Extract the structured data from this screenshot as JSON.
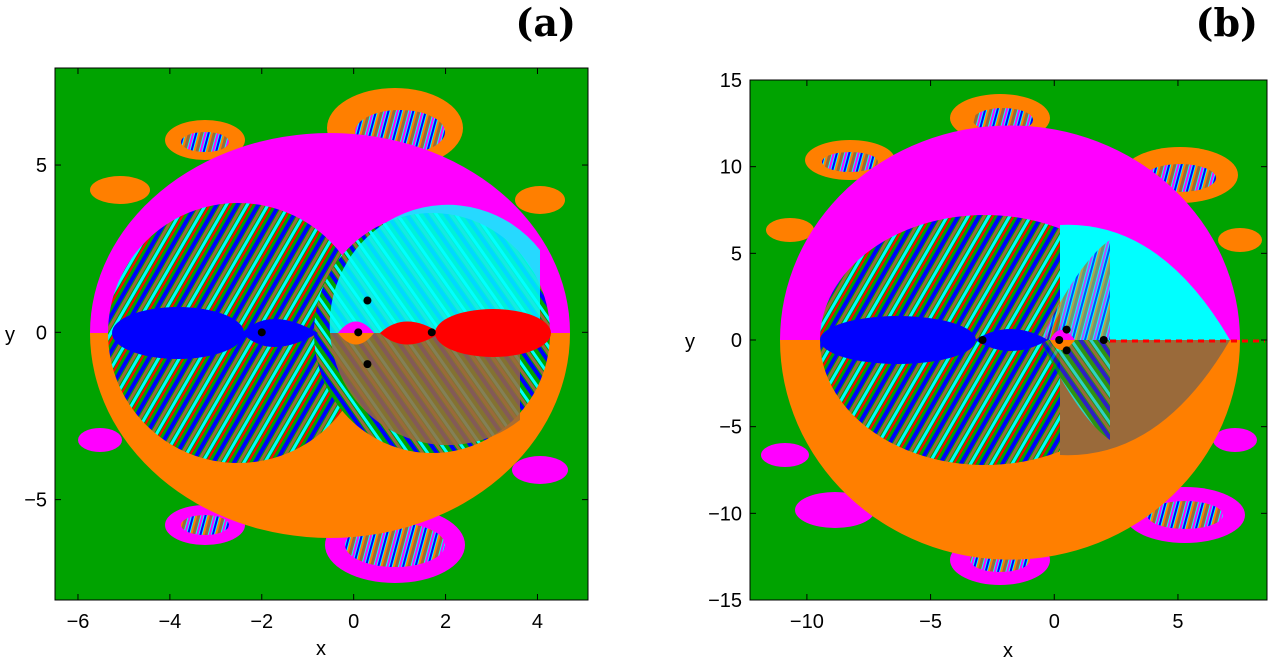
{
  "colors": {
    "green": "#00a300",
    "magenta": "#ff00ff",
    "cyan": "#00ffff",
    "blue": "#0000ff",
    "red": "#ff0000",
    "orange": "#ff7f00",
    "brown": "#9a6a3a",
    "point": "#000000"
  },
  "chart_data": [
    {
      "type": "heatmap",
      "panel_label": "(a)",
      "xlabel": "x",
      "ylabel": "y",
      "xlim": [
        -6.5,
        5.1
      ],
      "ylim": [
        -8.0,
        7.9
      ],
      "xticks": [
        -6,
        -4,
        -2,
        0,
        2,
        4
      ],
      "xtick_labels": [
        "−6",
        "−4",
        "−2",
        "0",
        "2",
        "4"
      ],
      "yticks": [
        -5,
        0,
        5
      ],
      "ytick_labels": [
        "−5",
        "0",
        "5"
      ],
      "points": [
        {
          "x": -2.0,
          "y": 0.0
        },
        {
          "x": 0.1,
          "y": 0.0
        },
        {
          "x": 1.7,
          "y": 0.0
        },
        {
          "x": 0.3,
          "y": 0.95
        },
        {
          "x": 0.3,
          "y": -0.95
        }
      ]
    },
    {
      "type": "heatmap",
      "panel_label": "(b)",
      "xlabel": "x",
      "ylabel": "y",
      "xlim": [
        -12.3,
        8.6
      ],
      "ylim": [
        -15.0,
        15.0
      ],
      "xticks": [
        -10,
        -5,
        0,
        5
      ],
      "xtick_labels": [
        "−10",
        "−5",
        "0",
        "5"
      ],
      "yticks": [
        -15,
        -10,
        -5,
        0,
        5,
        10,
        15
      ],
      "ytick_labels": [
        "−15",
        "−10",
        "−5",
        "0",
        "5",
        "10",
        "15"
      ],
      "points": [
        {
          "x": -2.9,
          "y": 0.0
        },
        {
          "x": 0.2,
          "y": 0.0
        },
        {
          "x": 2.0,
          "y": 0.0
        },
        {
          "x": 0.5,
          "y": 0.6
        },
        {
          "x": 0.5,
          "y": -0.6
        }
      ]
    }
  ]
}
